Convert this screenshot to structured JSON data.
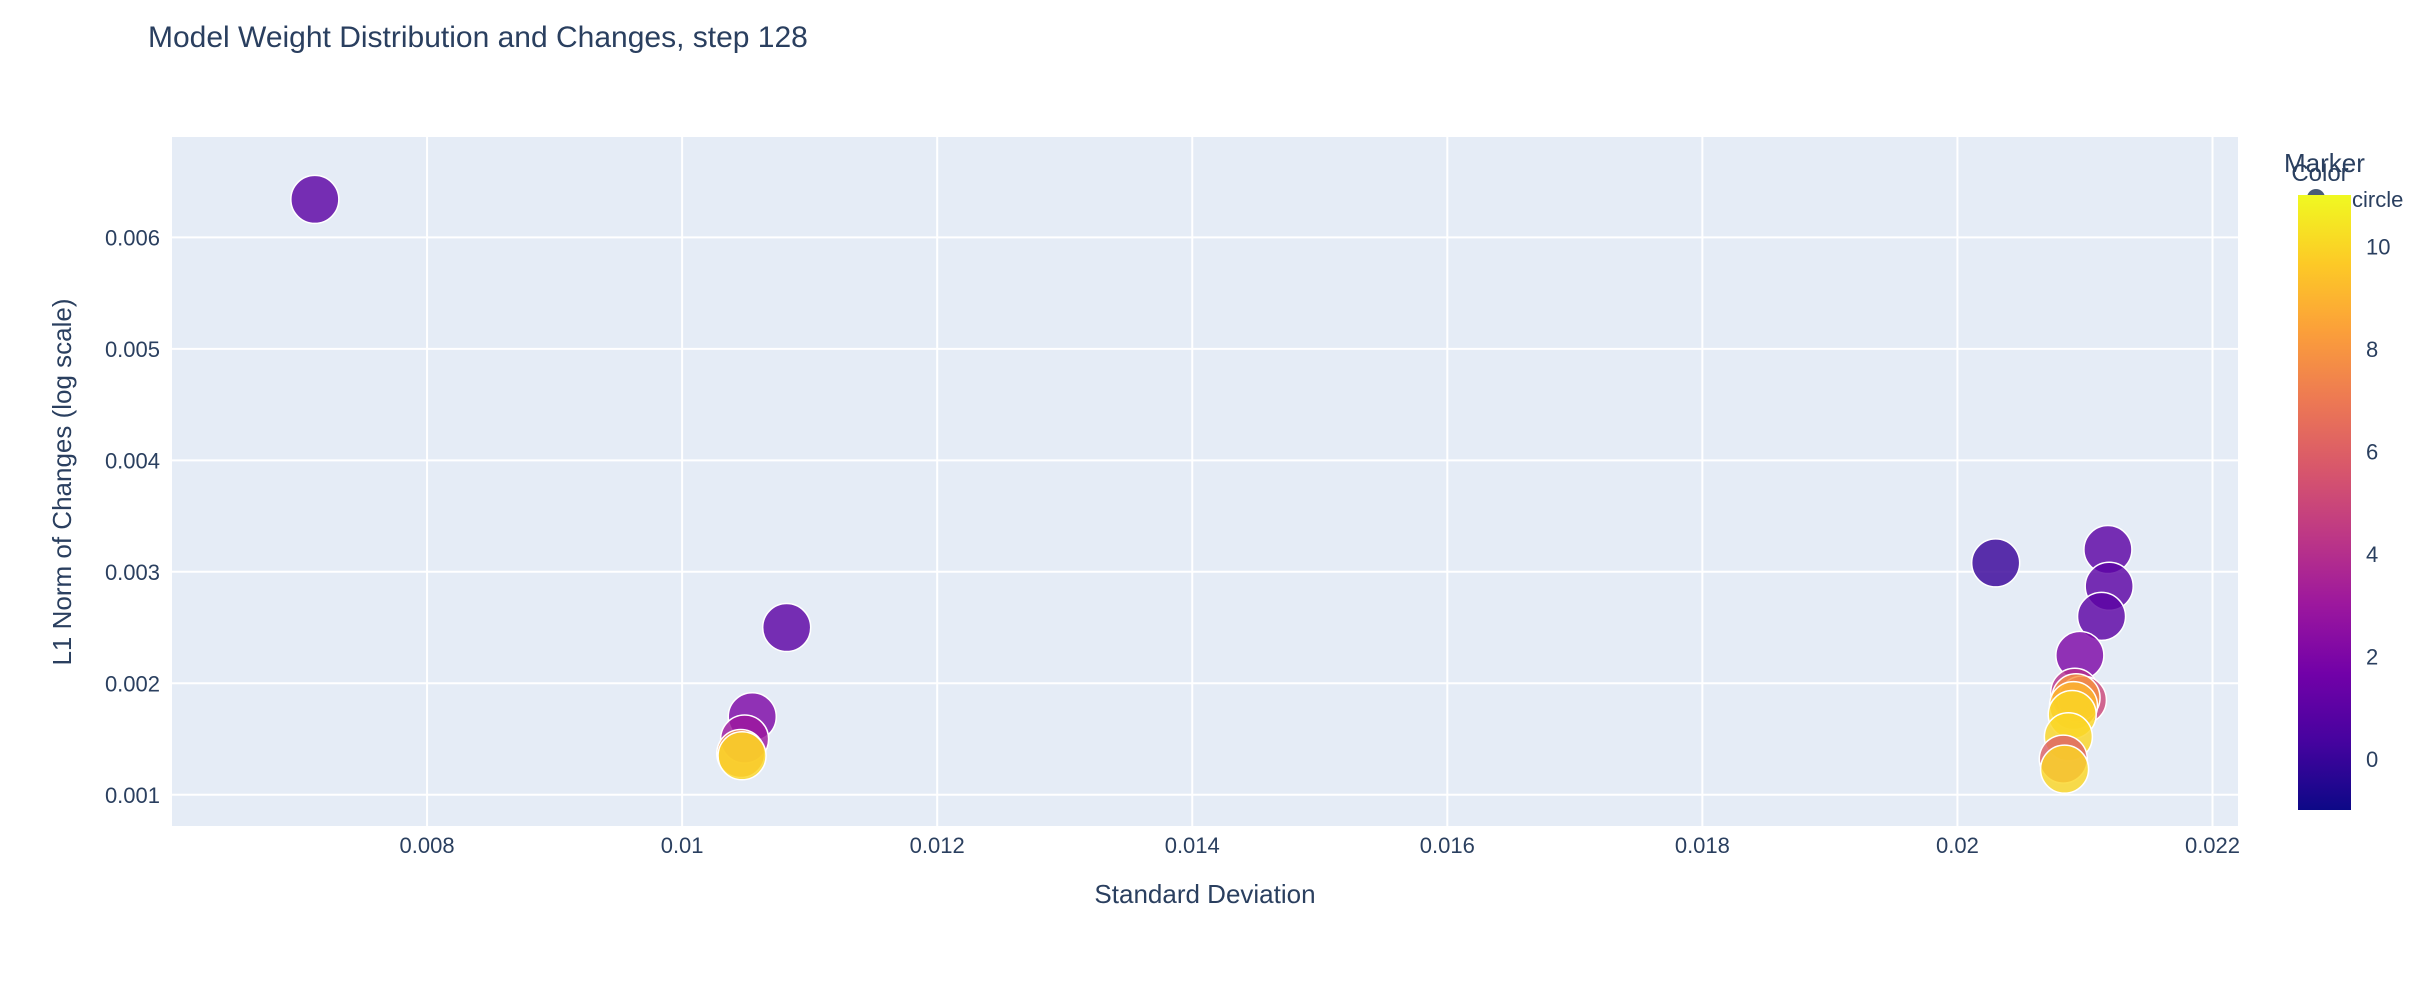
{
  "chart_data": {
    "type": "scatter",
    "title": "Model Weight Distribution and Changes, step 128",
    "xlabel": "Standard Deviation",
    "ylabel": "L1 Norm of Changes (log scale)",
    "xlim": [
      0.006,
      0.0222
    ],
    "ylim": [
      0.00072,
      0.0069
    ],
    "xticks": [
      "0.008",
      "0.01",
      "0.012",
      "0.014",
      "0.016",
      "0.018",
      "0.02",
      "0.022"
    ],
    "xtick_values": [
      0.008,
      0.01,
      0.012,
      0.014,
      0.016,
      0.018,
      0.02,
      0.022
    ],
    "yticks": [
      "0.001",
      "0.002",
      "0.003",
      "0.004",
      "0.005",
      "0.006"
    ],
    "ytick_values": [
      0.001,
      0.002,
      0.003,
      0.004,
      0.005,
      0.006
    ],
    "grid": true,
    "legend": {
      "title": "Marker",
      "items": [
        {
          "label": "circle",
          "symbol": "circle"
        }
      ],
      "placement": "top-right"
    },
    "colorbar": {
      "title": "Color",
      "min": -1,
      "max": 11,
      "ticks": [
        "0",
        "2",
        "4",
        "6",
        "8",
        "10"
      ],
      "tick_values": [
        0,
        2,
        4,
        6,
        8,
        10
      ],
      "colorscale": [
        "#0d0887",
        "#46039f",
        "#7201a8",
        "#9c179e",
        "#bd3786",
        "#d8576b",
        "#ed7953",
        "#fb9f3a",
        "#fdca26",
        "#f0f921"
      ]
    },
    "points": [
      {
        "x": 0.00712,
        "y": 0.00634,
        "color": 1
      },
      {
        "x": 0.0203,
        "y": 0.00308,
        "color": 0
      },
      {
        "x": 0.02118,
        "y": 0.0032,
        "color": 1
      },
      {
        "x": 0.02119,
        "y": 0.00287,
        "color": 1
      },
      {
        "x": 0.02113,
        "y": 0.0026,
        "color": 1
      },
      {
        "x": 0.01082,
        "y": 0.0025,
        "color": 1
      },
      {
        "x": 0.02096,
        "y": 0.00225,
        "color": 2
      },
      {
        "x": 0.02092,
        "y": 0.00192,
        "color": 4
      },
      {
        "x": 0.02098,
        "y": 0.00185,
        "color": 5
      },
      {
        "x": 0.02093,
        "y": 0.00187,
        "color": 8
      },
      {
        "x": 0.02091,
        "y": 0.0018,
        "color": 9
      },
      {
        "x": 0.0209,
        "y": 0.00172,
        "color": 10
      },
      {
        "x": 0.02087,
        "y": 0.00152,
        "color": 10
      },
      {
        "x": 0.02083,
        "y": 0.00132,
        "color": 6
      },
      {
        "x": 0.02084,
        "y": 0.00123,
        "color": 10
      },
      {
        "x": 0.01055,
        "y": 0.0017,
        "color": 2
      },
      {
        "x": 0.01049,
        "y": 0.0015,
        "color": 3
      },
      {
        "x": 0.01046,
        "y": 0.00137,
        "color": 8
      },
      {
        "x": 0.01047,
        "y": 0.00135,
        "color": 10
      }
    ]
  }
}
